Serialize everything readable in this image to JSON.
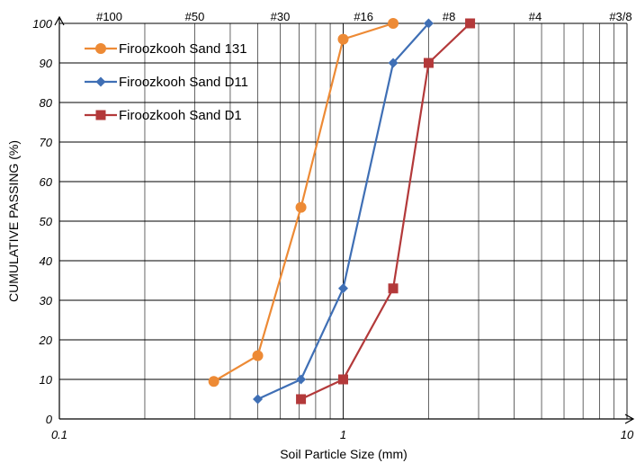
{
  "chart_data": {
    "type": "line",
    "xlabel": "Soil Particle Size (mm)",
    "ylabel": "CUMULATIVE PASSING (%)",
    "x_scale": "log",
    "xlim": [
      0.1,
      10
    ],
    "ylim": [
      0,
      100
    ],
    "x_ticks": [
      {
        "value": 0.1,
        "label": "0.1"
      },
      {
        "value": 1,
        "label": "1"
      },
      {
        "value": 10,
        "label": "10"
      }
    ],
    "y_ticks": [
      0,
      10,
      20,
      30,
      40,
      50,
      60,
      70,
      80,
      90,
      100
    ],
    "sieve_labels": [
      {
        "value": 0.15,
        "label": "#100"
      },
      {
        "value": 0.3,
        "label": "#50"
      },
      {
        "value": 0.6,
        "label": "#30"
      },
      {
        "value": 1.18,
        "label": "#16"
      },
      {
        "value": 2.36,
        "label": "#8"
      },
      {
        "value": 4.75,
        "label": "#4"
      },
      {
        "value": 9.5,
        "label": "#3/8"
      }
    ],
    "grid": true,
    "legend_position": "top-left",
    "series": [
      {
        "name": "Firoozkooh Sand 131",
        "color": "#ED8A35",
        "marker": "circle",
        "x": [
          0.35,
          0.5,
          0.71,
          1.0,
          1.5
        ],
        "y": [
          9.5,
          16,
          53.5,
          96,
          100
        ]
      },
      {
        "name": "Firoozkooh Sand D11",
        "color": "#3F6FB5",
        "marker": "diamond",
        "x": [
          0.5,
          0.71,
          1.0,
          1.5,
          2.0
        ],
        "y": [
          5,
          10,
          33,
          90,
          100
        ]
      },
      {
        "name": "Firoozkooh Sand D1",
        "color": "#B3393A",
        "marker": "square",
        "x": [
          0.71,
          1.0,
          1.5,
          2.0,
          2.8
        ],
        "y": [
          5,
          10,
          33,
          90,
          100
        ]
      }
    ]
  }
}
